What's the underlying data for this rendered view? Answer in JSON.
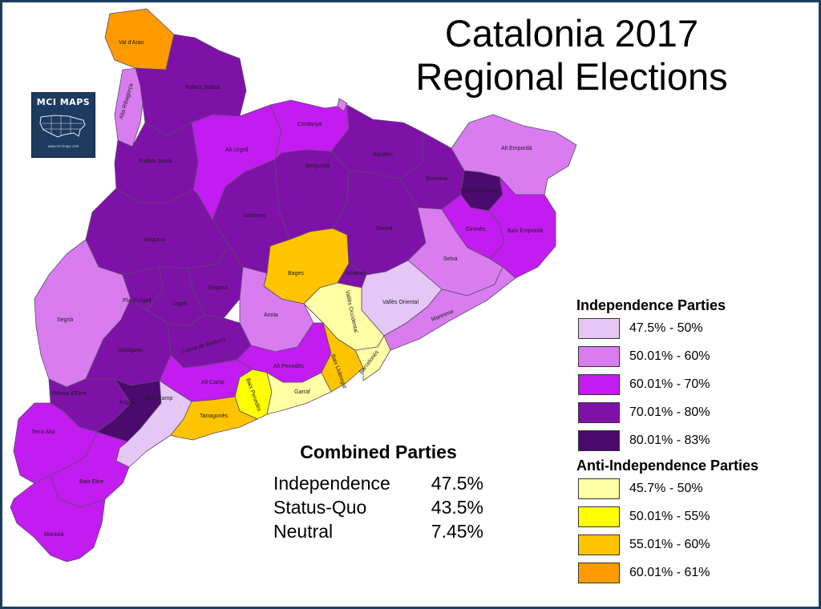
{
  "map": {
    "title_line1": "Catalonia 2017",
    "title_line2": "Regional Elections"
  },
  "logo": {
    "name": "MCI MAPS",
    "url": "www.mcimaps.com",
    "icon": "us-map-icon"
  },
  "summary": {
    "title": "Combined Parties",
    "rows": [
      {
        "label": "Independence",
        "value": "47.5%"
      },
      {
        "label": "Status-Quo",
        "value": "43.5%"
      },
      {
        "label": "Neutral",
        "value": "7.45%"
      }
    ]
  },
  "legend": {
    "independence_title": "Independence Parties",
    "independence": [
      {
        "label": "47.5% - 50%",
        "color": "#e6c6f5"
      },
      {
        "label": "50.01% - 60%",
        "color": "#d87cf0"
      },
      {
        "label": "60.01% - 70%",
        "color": "#c21cf0"
      },
      {
        "label": "70.01% - 80%",
        "color": "#7e12a8"
      },
      {
        "label": "80.01% - 83%",
        "color": "#4b0a6e"
      }
    ],
    "anti_title": "Anti-Independence Parties",
    "anti": [
      {
        "label": "45.7% - 50%",
        "color": "#ffffa6"
      },
      {
        "label": "50.01% - 55%",
        "color": "#ffff00"
      },
      {
        "label": "55.01% - 60%",
        "color": "#ffc400"
      },
      {
        "label": "60.01% - 61%",
        "color": "#ff9a00"
      }
    ]
  },
  "counties": [
    {
      "name": "Val d'Aran",
      "class": "a4"
    },
    {
      "name": "Alta Ribagorça",
      "class": "i2"
    },
    {
      "name": "Pallars Sobirà",
      "class": "i4"
    },
    {
      "name": "Pallars Jussà",
      "class": "i4"
    },
    {
      "name": "Alt Urgell",
      "class": "i3"
    },
    {
      "name": "Cerdanya",
      "class": "i3"
    },
    {
      "name": "Ripollès",
      "class": "i4"
    },
    {
      "name": "Garrotxa",
      "class": "i4"
    },
    {
      "name": "Alt Empordà",
      "class": "i2"
    },
    {
      "name": "Pla de l'Estany",
      "class": "i5"
    },
    {
      "name": "Gironès",
      "class": "i3"
    },
    {
      "name": "Baix Empordà",
      "class": "i3"
    },
    {
      "name": "Berguedà",
      "class": "i4"
    },
    {
      "name": "Solsonès",
      "class": "i4"
    },
    {
      "name": "Osona",
      "class": "i4"
    },
    {
      "name": "Selva",
      "class": "i2"
    },
    {
      "name": "Noguera",
      "class": "i4"
    },
    {
      "name": "Bages",
      "class": "a3"
    },
    {
      "name": "Moianès",
      "class": "i4"
    },
    {
      "name": "Segarra",
      "class": "i4"
    },
    {
      "name": "Anoia",
      "class": "i2"
    },
    {
      "name": "Vallès Oriental",
      "class": "i1"
    },
    {
      "name": "Maresme",
      "class": "i2"
    },
    {
      "name": "Vallès Occidental",
      "class": "a1"
    },
    {
      "name": "Segrià",
      "class": "i2"
    },
    {
      "name": "Pla d'Urgell",
      "class": "i4"
    },
    {
      "name": "Urgell",
      "class": "i4"
    },
    {
      "name": "Garrigues",
      "class": "i4"
    },
    {
      "name": "Conca de Barberà",
      "class": "i4"
    },
    {
      "name": "Alt Penedès",
      "class": "i3"
    },
    {
      "name": "Baix Llobregat",
      "class": "a3"
    },
    {
      "name": "Barcelonès",
      "class": "a1"
    },
    {
      "name": "Alt Camp",
      "class": "i3"
    },
    {
      "name": "Baix Penedès",
      "class": "a2"
    },
    {
      "name": "Garraf",
      "class": "a1"
    },
    {
      "name": "Ribera d'Ebre",
      "class": "i4"
    },
    {
      "name": "Priorat",
      "class": "i5"
    },
    {
      "name": "Baix Camp",
      "class": "i1"
    },
    {
      "name": "Tarragonès",
      "class": "a3"
    },
    {
      "name": "Terra Alta",
      "class": "i3"
    },
    {
      "name": "Baix Ebre",
      "class": "i3"
    },
    {
      "name": "Montsià",
      "class": "i3"
    }
  ]
}
